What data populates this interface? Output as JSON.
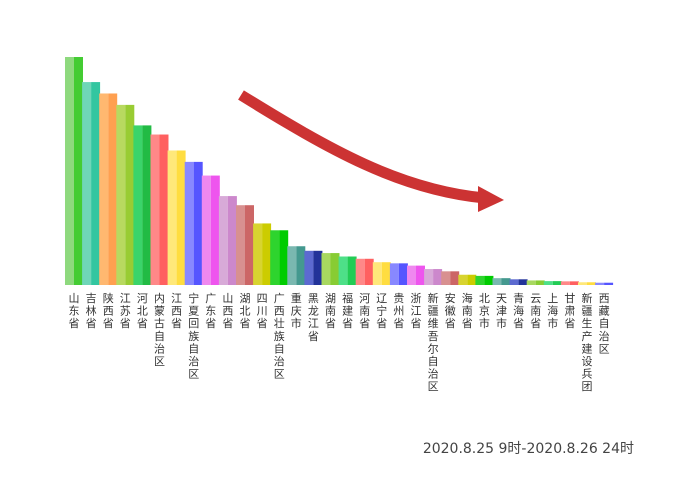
{
  "chart_data": {
    "type": "bar",
    "categories": [
      "山东省",
      "吉林省",
      "陕西省",
      "江苏省",
      "河北省",
      "内蒙古自治区",
      "江西省",
      "宁夏回族自治区",
      "广东省",
      "山西省",
      "湖北省",
      "四川省",
      "广西壮族自治区",
      "重庆市",
      "黑龙江省",
      "湖南省",
      "福建省",
      "河南省",
      "辽宁省",
      "贵州省",
      "浙江省",
      "新疆维吾尔自治区",
      "安徽省",
      "海南省",
      "北京市",
      "天津市",
      "青海省",
      "云南省",
      "上海市",
      "甘肃省",
      "新疆生产建设兵团",
      "西藏自治区"
    ],
    "values": [
      100,
      89,
      84,
      79,
      70,
      66,
      59,
      54,
      48,
      39,
      35,
      27,
      24,
      17,
      15,
      14,
      12.5,
      11.5,
      10,
      9.5,
      8.5,
      7,
      6,
      4.5,
      4,
      3,
      2.5,
      2,
      1.7,
      1.6,
      1.2,
      1
    ],
    "ylim": [
      0,
      100
    ],
    "title": "",
    "xlabel": "",
    "ylabel": "",
    "grid": false,
    "legend": "none",
    "colors": {
      "light": [
        "#8ed97e",
        "#6fd6b8",
        "#ffb870",
        "#b8d960",
        "#3bd46a",
        "#ff8888",
        "#ffe87a",
        "#8888ff",
        "#ef88ef",
        "#d8aad8",
        "#d89090",
        "#d8d430",
        "#2ed42e",
        "#7ab8b0",
        "#5c6ad0",
        "#a8d860",
        "#4ee088",
        "#ff8888",
        "#ffe87a",
        "#8888ff",
        "#ef88ef",
        "#d8aad8",
        "#d89090",
        "#d8d430",
        "#2ed42e",
        "#7ab8b0",
        "#5c6ad0",
        "#a8d860",
        "#4ee088",
        "#ff8888",
        "#ffe87a",
        "#8888ff"
      ],
      "dark": [
        "#44cc33",
        "#33c6a0",
        "#ffa050",
        "#99cc33",
        "#22bb44",
        "#ff6060",
        "#ffdd40",
        "#5555ff",
        "#ee55ee",
        "#cc88cc",
        "#cc6666",
        "#cccc00",
        "#00cc00",
        "#44998f",
        "#223399",
        "#88cc33",
        "#22cc55",
        "#ff6060",
        "#ffdd40",
        "#5555ff",
        "#ee55ee",
        "#cc88cc",
        "#cc6666",
        "#cccc00",
        "#00cc00",
        "#44998f",
        "#223399",
        "#88cc33",
        "#22cc55",
        "#ff6060",
        "#ffdd40",
        "#5555ff"
      ],
      "arrow": "#cc3333"
    },
    "annotation": "2020.8.25  9时-2020.8.26  24时"
  }
}
